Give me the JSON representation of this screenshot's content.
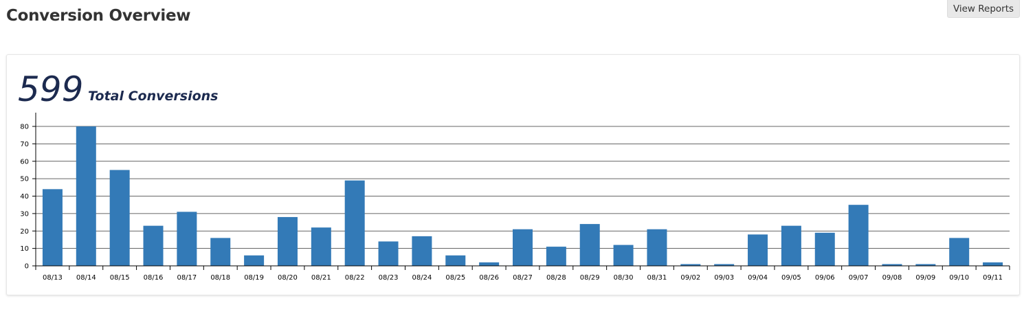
{
  "header": {
    "title": "Conversion Overview",
    "view_reports_label": "View Reports"
  },
  "summary": {
    "total_value": "599",
    "total_label": "Total Conversions"
  },
  "colors": {
    "bar": "#337ab7",
    "gridline": "#333333",
    "title_text": "#1c2a4f"
  },
  "chart_data": {
    "type": "bar",
    "categories": [
      "08/13",
      "08/14",
      "08/15",
      "08/16",
      "08/17",
      "08/18",
      "08/19",
      "08/20",
      "08/21",
      "08/22",
      "08/23",
      "08/24",
      "08/25",
      "08/26",
      "08/27",
      "08/28",
      "08/29",
      "08/30",
      "08/31",
      "09/02",
      "09/03",
      "09/04",
      "09/05",
      "09/06",
      "09/07",
      "09/08",
      "09/09",
      "09/10",
      "09/11"
    ],
    "values": [
      44,
      80,
      55,
      23,
      31,
      16,
      6,
      28,
      22,
      49,
      14,
      17,
      6,
      2,
      21,
      11,
      24,
      12,
      21,
      1,
      1,
      18,
      23,
      19,
      35,
      1,
      1,
      16,
      2
    ],
    "y_ticks": [
      0,
      10,
      20,
      30,
      40,
      50,
      60,
      70,
      80
    ],
    "ylim": [
      0,
      80
    ],
    "grid": true,
    "title": "",
    "xlabel": "",
    "ylabel": ""
  }
}
